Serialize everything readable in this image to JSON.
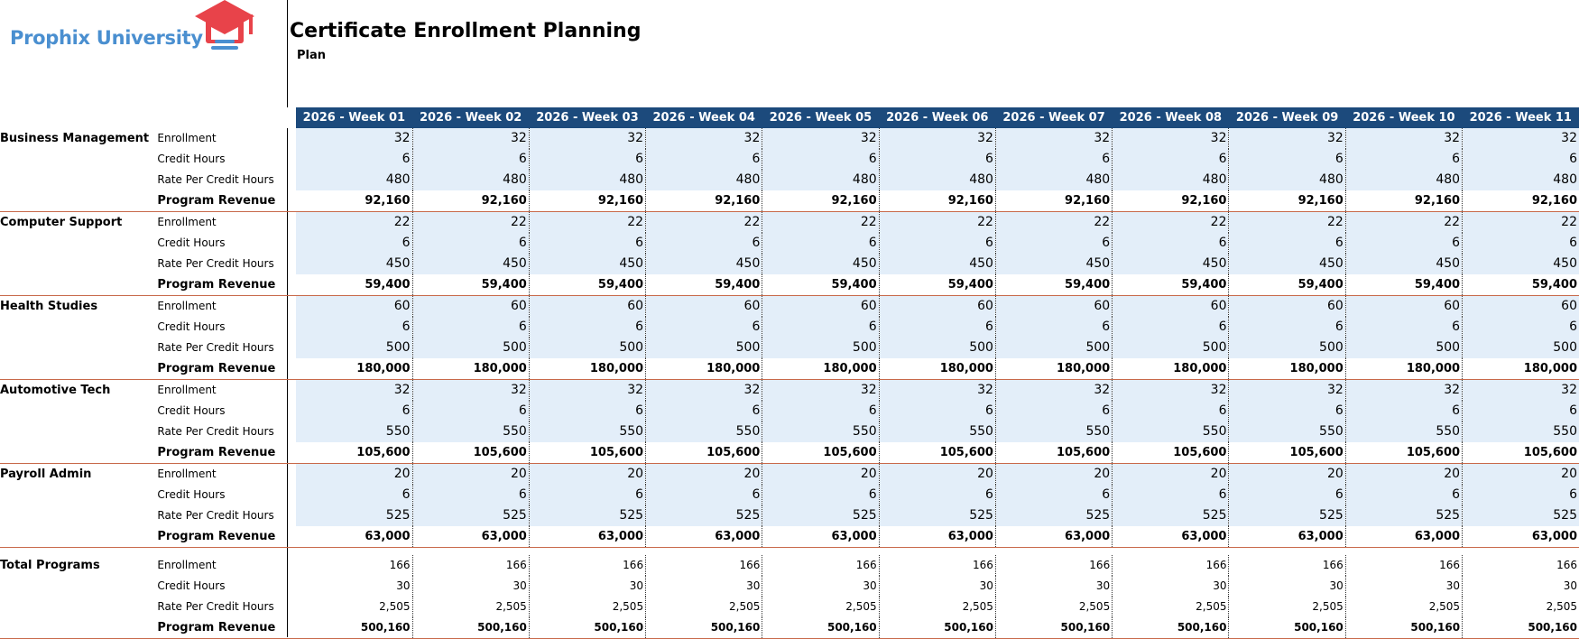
{
  "brand": {
    "name": "Prophix University",
    "accent": "#e8434a",
    "text_color": "#4a8fd0"
  },
  "report": {
    "title": "Certificate Enrollment Planning",
    "scenario": "Plan"
  },
  "header_color": "#1c4a7c",
  "input_fill": "#e3eef9",
  "weeks": [
    "2026 - Week 01",
    "2026 - Week 02",
    "2026 - Week 03",
    "2026 - Week 04",
    "2026 - Week 05",
    "2026 - Week 06",
    "2026 - Week 07",
    "2026 - Week 08",
    "2026 - Week 09",
    "2026 - Week 10",
    "2026 - Week 11"
  ],
  "metrics": [
    "Enrollment",
    "Credit Hours",
    "Rate Per Credit Hours",
    "Program Revenue"
  ],
  "programs": [
    {
      "name": "Business Management",
      "enrollment": "32",
      "credit_hours": "6",
      "rate": "480",
      "revenue": "92,160"
    },
    {
      "name": "Computer Support",
      "enrollment": "22",
      "credit_hours": "6",
      "rate": "450",
      "revenue": "59,400"
    },
    {
      "name": "Health Studies",
      "enrollment": "60",
      "credit_hours": "6",
      "rate": "500",
      "revenue": "180,000"
    },
    {
      "name": "Automotive Tech",
      "enrollment": "32",
      "credit_hours": "6",
      "rate": "550",
      "revenue": "105,600"
    },
    {
      "name": "Payroll Admin",
      "enrollment": "20",
      "credit_hours": "6",
      "rate": "525",
      "revenue": "63,000"
    }
  ],
  "total": {
    "name": "Total Programs",
    "enrollment": "166",
    "credit_hours": "30",
    "rate": "2,505",
    "revenue": "500,160"
  }
}
